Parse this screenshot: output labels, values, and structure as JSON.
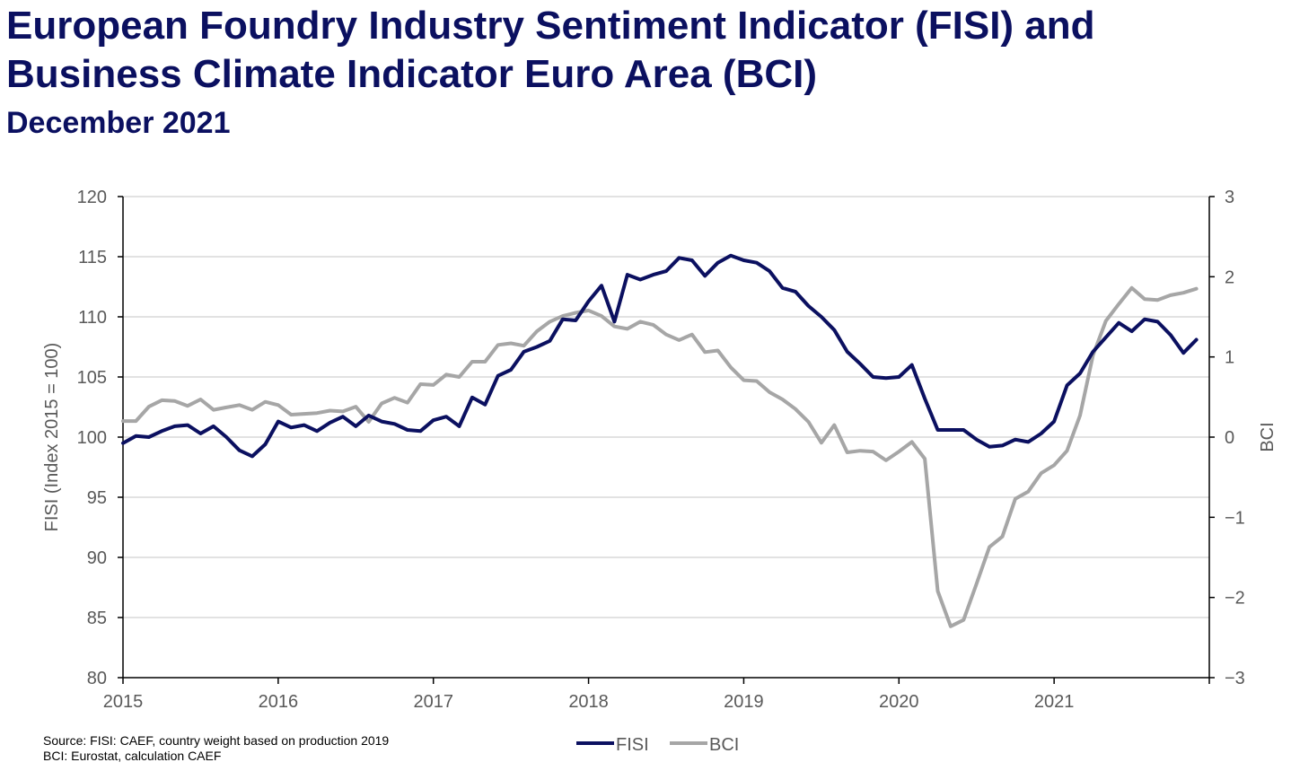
{
  "title_line1": "European Foundry Industry Sentiment Indicator (FISI) and",
  "title_line2": "Business Climate Indicator Euro Area (BCI)",
  "subtitle": "December 2021",
  "source_line1": "Source: FISI: CAEF, country weight based on production 2019",
  "source_line2": "BCI: Eurostat, calculation CAEF",
  "colors": {
    "fisi": "#0b1060",
    "bci": "#a6a6a6",
    "axis_text": "#595959",
    "grid": "#d9d9d9",
    "title": "#0b1060"
  },
  "chart_data": {
    "type": "line",
    "xlabel": "",
    "ylabel": "FISI (Index 2015 = 100)",
    "y2label": "BCI",
    "ylim": [
      80,
      120
    ],
    "y2lim": [
      -3,
      3
    ],
    "yticks": [
      80,
      85,
      90,
      95,
      100,
      105,
      110,
      115,
      120
    ],
    "y2ticks": [
      -3,
      -2,
      -1,
      0,
      1,
      2,
      3
    ],
    "xlim": [
      2015,
      2022
    ],
    "xticks": [
      "2015",
      "2016",
      "2017",
      "2018",
      "2019",
      "2020",
      "2021"
    ],
    "grid": "horizontal",
    "legend_position": "bottom-center",
    "series": [
      {
        "name": "FISI",
        "axis": "left",
        "start": "2015-01",
        "values": [
          99.5,
          100.1,
          100.0,
          100.5,
          100.9,
          101.0,
          100.3,
          100.9,
          100.0,
          98.9,
          98.4,
          99.4,
          101.3,
          100.8,
          101.0,
          100.5,
          101.2,
          101.7,
          100.9,
          101.8,
          101.3,
          101.1,
          100.6,
          100.5,
          101.4,
          101.7,
          100.9,
          103.3,
          102.7,
          105.1,
          105.6,
          107.1,
          107.5,
          108.0,
          109.8,
          109.7,
          111.3,
          112.6,
          109.6,
          113.5,
          113.1,
          113.5,
          113.8,
          114.9,
          114.7,
          113.4,
          114.5,
          115.1,
          114.7,
          114.5,
          113.8,
          112.4,
          112.1,
          110.9,
          110.0,
          108.9,
          107.1,
          106.1,
          105.0,
          104.9,
          105.0,
          106.0,
          103.2,
          100.6,
          100.6,
          100.6,
          99.8,
          99.2,
          99.3,
          99.8,
          99.6,
          100.3,
          101.3,
          104.3,
          105.3,
          107.1,
          108.3,
          109.5,
          108.8,
          109.8,
          109.6,
          108.5,
          107.0,
          108.1
        ]
      },
      {
        "name": "BCI",
        "axis": "right",
        "start": "2015-01",
        "values": [
          0.2,
          0.2,
          0.38,
          0.46,
          0.45,
          0.39,
          0.47,
          0.34,
          0.37,
          0.4,
          0.34,
          0.44,
          0.4,
          0.28,
          0.29,
          0.3,
          0.33,
          0.32,
          0.38,
          0.19,
          0.42,
          0.49,
          0.43,
          0.66,
          0.65,
          0.78,
          0.75,
          0.94,
          0.94,
          1.15,
          1.17,
          1.14,
          1.32,
          1.44,
          1.51,
          1.55,
          1.58,
          1.51,
          1.38,
          1.35,
          1.44,
          1.4,
          1.28,
          1.21,
          1.28,
          1.06,
          1.08,
          0.87,
          0.71,
          0.7,
          0.56,
          0.47,
          0.35,
          0.19,
          -0.07,
          0.15,
          -0.19,
          -0.17,
          -0.18,
          -0.29,
          -0.18,
          -0.06,
          -0.27,
          -1.92,
          -2.36,
          -2.28,
          -1.83,
          -1.37,
          -1.24,
          -0.77,
          -0.68,
          -0.45,
          -0.35,
          -0.17,
          0.27,
          1.02,
          1.45,
          1.66,
          1.86,
          1.72,
          1.71,
          1.77,
          1.8,
          1.85
        ]
      }
    ]
  }
}
